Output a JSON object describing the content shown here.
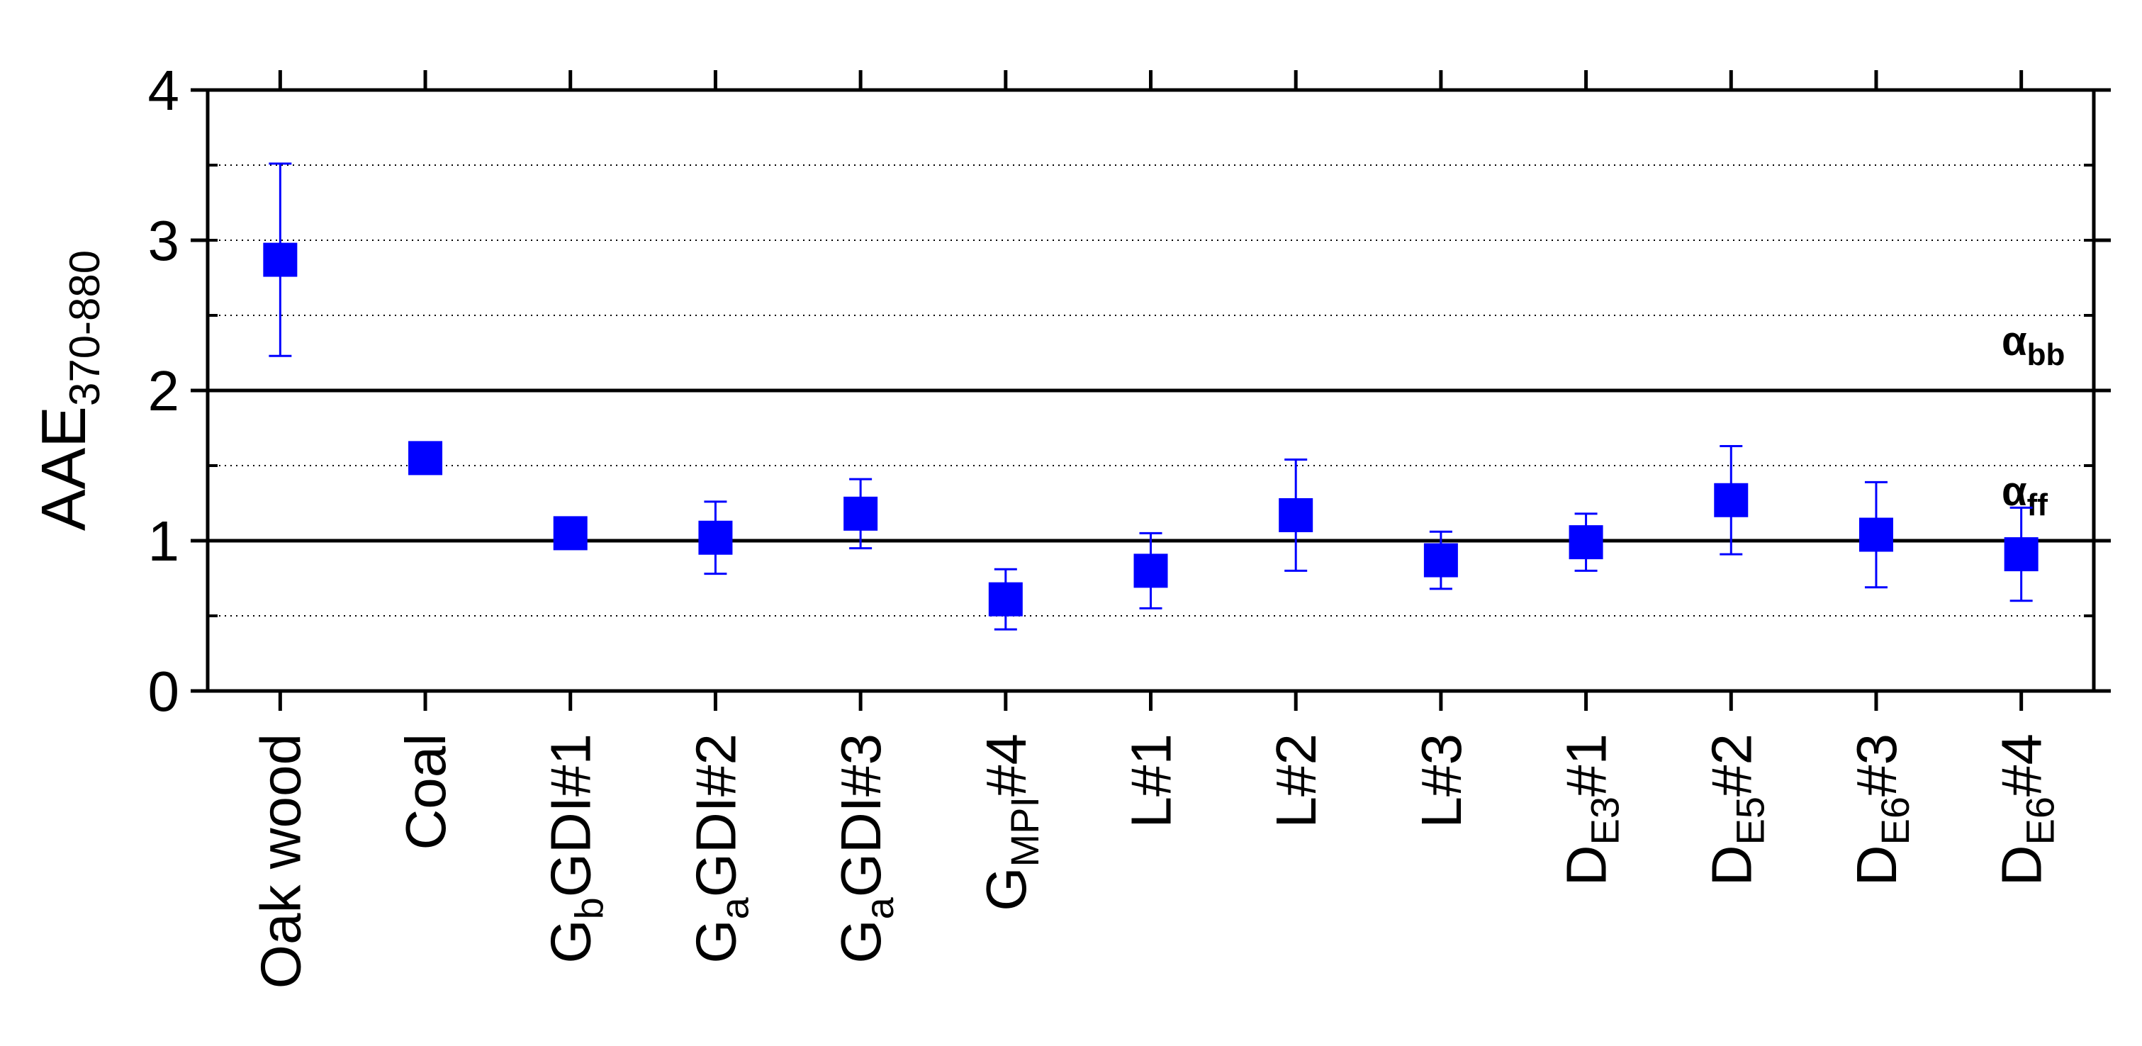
{
  "chart_data": {
    "type": "scatter",
    "y_label": [
      "AAE",
      "370-880"
    ],
    "categories": [
      [
        "Oak wood"
      ],
      [
        "Coal"
      ],
      [
        "G",
        "b",
        "GDI#1"
      ],
      [
        "G",
        "a",
        "GDI#2"
      ],
      [
        "G",
        "a",
        "GDI#3"
      ],
      [
        "G",
        "MPI",
        "#4"
      ],
      [
        "L#1"
      ],
      [
        "L#2"
      ],
      [
        "L#3"
      ],
      [
        "D",
        "E3",
        "#1"
      ],
      [
        "D",
        "E5",
        "#2"
      ],
      [
        "D",
        "E6",
        "#3"
      ],
      [
        "D",
        "E6",
        "#4"
      ]
    ],
    "values": [
      2.87,
      1.55,
      1.05,
      1.02,
      1.18,
      0.61,
      0.8,
      1.17,
      0.87,
      0.99,
      1.27,
      1.04,
      0.91
    ],
    "errors": [
      0.64,
      0.03,
      0.03,
      0.24,
      0.23,
      0.2,
      0.25,
      0.37,
      0.19,
      0.19,
      0.36,
      0.35,
      0.31
    ],
    "color": "#0000ff",
    "ylim": [
      0,
      4
    ],
    "yticks": [
      0,
      1,
      2,
      3,
      4
    ],
    "grid_lines": [
      0.5,
      1.5,
      2.5,
      3,
      3.5
    ],
    "reference_lines": [
      2,
      1
    ],
    "annotations": [
      [
        "α",
        "bb"
      ],
      [
        "α",
        "ff"
      ]
    ]
  }
}
